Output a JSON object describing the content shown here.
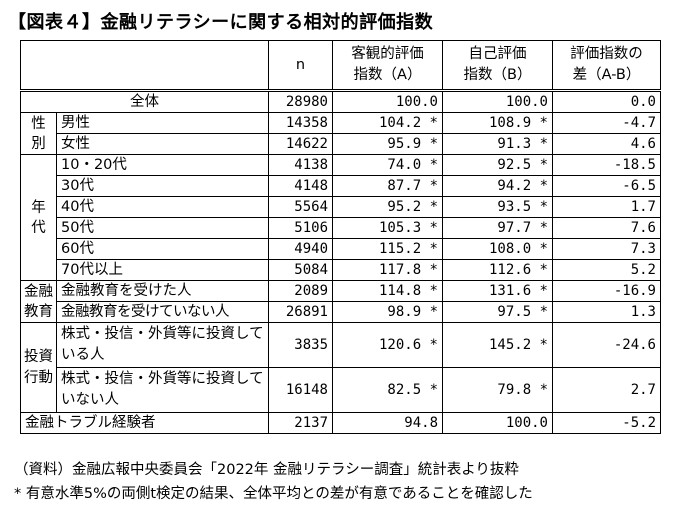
{
  "title": "【図表４】金融リテラシーに関する相対的評価指数",
  "headers": {
    "n": "n",
    "objective": "客観的評価\n指数（A）",
    "self": "自己評価\n指数（B）",
    "diff": "評価指数の\n差（A-B）"
  },
  "rows": {
    "total": {
      "label": "全体",
      "n": "28980",
      "a": "100.0",
      "b": "100.0",
      "d": "0.0"
    },
    "gender_group": "性\n別",
    "male": {
      "label": "男性",
      "n": "14358",
      "a": "104.2 *",
      "b": "108.9 *",
      "d": "-4.7"
    },
    "female": {
      "label": "女性",
      "n": "14622",
      "a": "95.9 *",
      "b": "91.3 *",
      "d": "4.6"
    },
    "age_group": "年\n代",
    "age_10_20": {
      "label": "10・20代",
      "n": "4138",
      "a": "74.0 *",
      "b": "92.5 *",
      "d": "-18.5"
    },
    "age_30": {
      "label": "30代",
      "n": "4148",
      "a": "87.7 *",
      "b": "94.2 *",
      "d": "-6.5"
    },
    "age_40": {
      "label": "40代",
      "n": "5564",
      "a": "95.2 *",
      "b": "93.5 *",
      "d": "1.7"
    },
    "age_50": {
      "label": "50代",
      "n": "5106",
      "a": "105.3 *",
      "b": "97.7 *",
      "d": "7.6"
    },
    "age_60": {
      "label": "60代",
      "n": "4940",
      "a": "115.2 *",
      "b": "108.0 *",
      "d": "7.3"
    },
    "age_70": {
      "label": "70代以上",
      "n": "5084",
      "a": "117.8 *",
      "b": "112.6 *",
      "d": "5.2"
    },
    "edu_group": "金融\n教育",
    "edu_yes": {
      "label": "金融教育を受けた人",
      "n": "2089",
      "a": "114.8 *",
      "b": "131.6 *",
      "d": "-16.9"
    },
    "edu_no": {
      "label": "金融教育を受けていない人",
      "n": "26891",
      "a": "98.9 *",
      "b": "97.5 *",
      "d": "1.3"
    },
    "inv_group": "投資\n行動",
    "inv_yes": {
      "label": "株式・投信・外貨等に投資している人",
      "n": "3835",
      "a": "120.6 *",
      "b": "145.2 *",
      "d": "-24.6"
    },
    "inv_no": {
      "label": "株式・投信・外貨等に投資していない人",
      "n": "16148",
      "a": "82.5 *",
      "b": "79.8 *",
      "d": "2.7"
    },
    "trouble": {
      "label": "金融トラブル経験者",
      "n": "2137",
      "a": "94.8",
      "b": "100.0",
      "d": "-5.2"
    }
  },
  "notes": {
    "source": "（資料）金融広報中央委員会「2022年 金融リテラシー調査」統計表より抜粋",
    "significance": "* 有意水準5%の両側t検定の結果、全体平均との差が有意であることを確認した"
  }
}
